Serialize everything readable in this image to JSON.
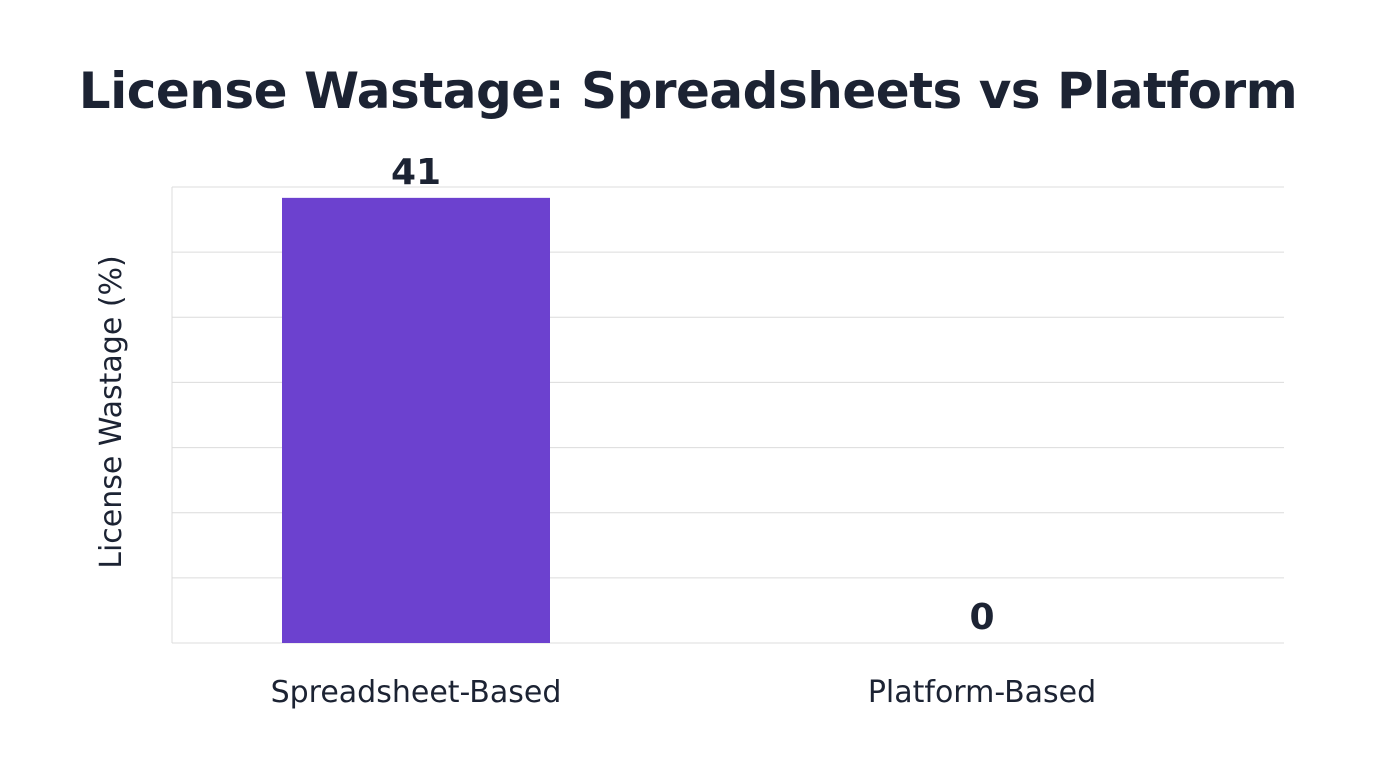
{
  "chart_data": {
    "type": "bar",
    "title": "License Wastage: Spreadsheets vs Platform",
    "xlabel": "",
    "ylabel": "License Wastage (%)",
    "categories": [
      "Spreadsheet-Based",
      "Platform-Based"
    ],
    "values": [
      41,
      0
    ],
    "value_labels": [
      "41",
      "0"
    ],
    "ylim": [
      0,
      42
    ],
    "grid": true,
    "bar_color": "#6c41cf",
    "text_color": "#1c2333",
    "grid_color": "#dcdcdc"
  }
}
